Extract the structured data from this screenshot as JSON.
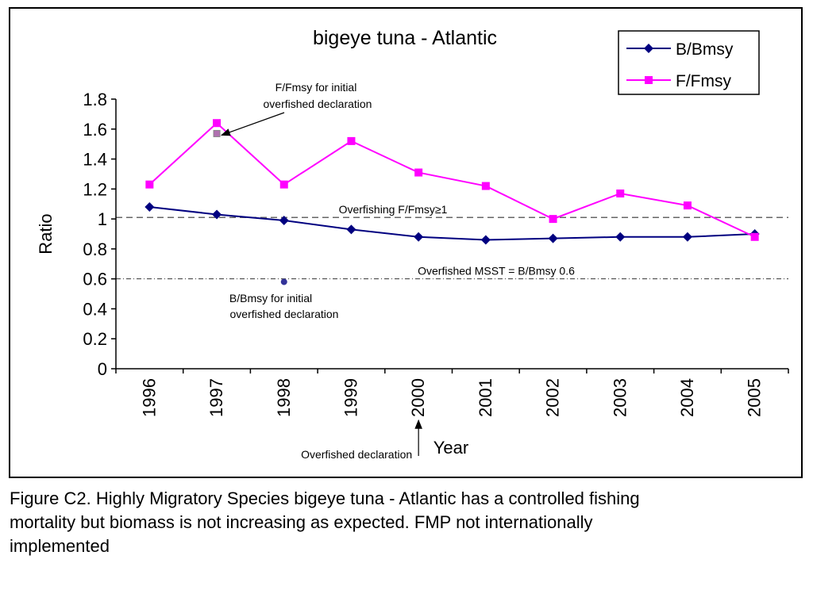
{
  "chart_data": {
    "type": "line",
    "title": "bigeye tuna - Atlantic",
    "xlabel": "Year",
    "ylabel": "Ratio",
    "categories": [
      "1996",
      "1997",
      "1998",
      "1999",
      "2000",
      "2001",
      "2002",
      "2003",
      "2004",
      "2005"
    ],
    "ylim": [
      0,
      1.8
    ],
    "yticks": [
      "0",
      "0.2",
      "0.4",
      "0.6",
      "0.8",
      "1",
      "1.2",
      "1.4",
      "1.6",
      "1.8"
    ],
    "grid": false,
    "legend_position": "top-right",
    "series": [
      {
        "name": "B/Bmsy",
        "color": "#000080",
        "marker": "diamond",
        "values": [
          1.08,
          1.03,
          0.99,
          0.93,
          0.88,
          0.86,
          0.87,
          0.88,
          0.88,
          0.9
        ]
      },
      {
        "name": "F/Fmsy",
        "color": "#ff00ff",
        "marker": "square",
        "values": [
          1.23,
          1.64,
          1.23,
          1.52,
          1.31,
          1.22,
          1.0,
          1.17,
          1.09,
          0.88
        ]
      }
    ],
    "reference_lines": [
      {
        "label": "Overfishing F/Fmsy≥1",
        "y": 1.01,
        "style": "dashed",
        "color": "#666666"
      },
      {
        "label": "Overfished MSST = B/Bmsy 0.6",
        "y": 0.6,
        "style": "dash-dot",
        "color": "#333333"
      }
    ],
    "annotations": [
      {
        "id": "f-initial",
        "lines": [
          "F/Fmsy for initial",
          "overfished declaration"
        ],
        "x": "1997",
        "y": 1.57,
        "color": "#b070b0"
      },
      {
        "id": "b-initial",
        "lines": [
          "B/Bmsy  for initial",
          "overfished declaration"
        ],
        "x": "1998",
        "y": 0.58,
        "color": "#333399"
      },
      {
        "id": "declaration",
        "lines": [
          "Overfished declaration"
        ],
        "x": "2000"
      }
    ]
  },
  "caption": {
    "lines": [
      "Figure C2.  Highly Migratory Species bigeye tuna - Atlantic has a controlled fishing",
      "mortality but biomass is not increasing as expected.   FMP not internationally",
      "implemented"
    ]
  }
}
